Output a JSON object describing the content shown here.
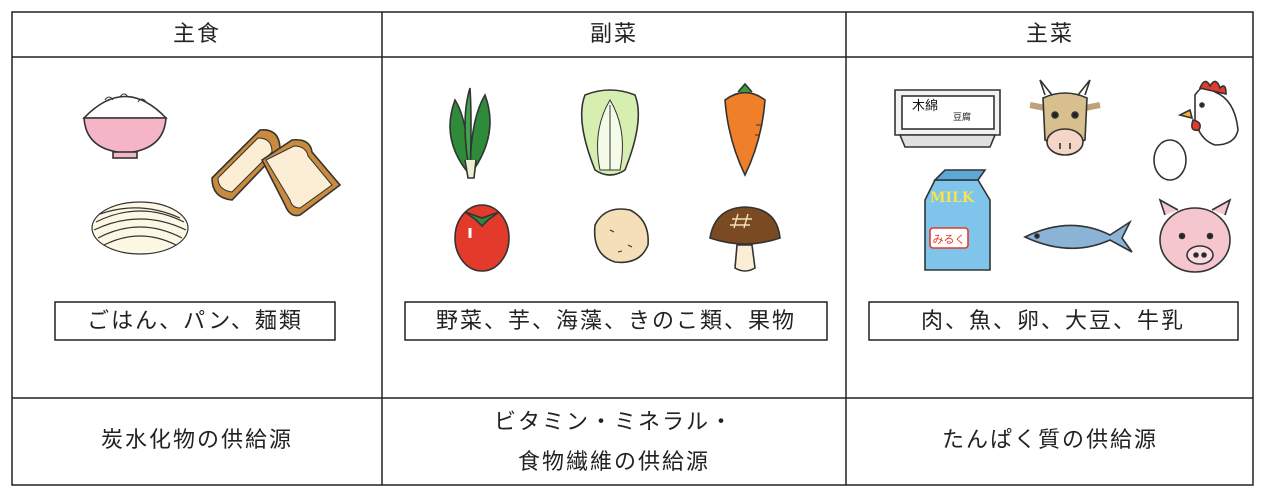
{
  "table": {
    "header": [
      "主食",
      "副菜",
      "主菜"
    ],
    "labels": [
      "ごはん、パン、麺類",
      "野菜、芋、海藻、きのこ類、果物",
      "肉、魚、卵、大豆、牛乳"
    ],
    "footer": [
      "炭水化物の供給源",
      [
        "ビタミン・ミネラル・",
        "食物繊維の供給源"
      ],
      "たんぱく質の供給源"
    ]
  },
  "illustrations": {
    "tofu_label": "木綿",
    "tofu_sub": "豆腐",
    "milk_label": "MILK",
    "milk_sub": "みるく"
  }
}
